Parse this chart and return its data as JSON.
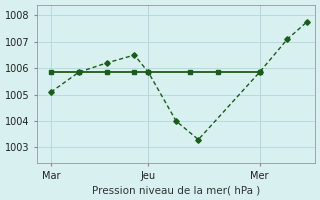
{
  "bg_color": "#d8f0f0",
  "grid_color": "#b8dada",
  "line_color": "#1a5c1a",
  "title": "Pression niveau de la mer( hPa )",
  "xlim": [
    0,
    10
  ],
  "ylim": [
    1002.4,
    1008.4
  ],
  "yticks": [
    1003,
    1004,
    1005,
    1006,
    1007,
    1008
  ],
  "xtick_positions": [
    0.5,
    4.0,
    8.0
  ],
  "xtick_labels": [
    "Mar",
    "Jeu",
    "Mer"
  ],
  "vline_x": 4.0,
  "vline2_x": 8.0,
  "line1_x": [
    0.5,
    1.5,
    2.5,
    3.5,
    4.0,
    5.5,
    6.5,
    8.0
  ],
  "line1_y": [
    1005.85,
    1005.85,
    1005.85,
    1005.85,
    1005.85,
    1005.85,
    1005.85,
    1005.85
  ],
  "line2_x": [
    0.5,
    1.5,
    2.5,
    3.5,
    4.0,
    5.0,
    5.8,
    8.0,
    9.0,
    9.7
  ],
  "line2_y": [
    1005.1,
    1005.85,
    1006.2,
    1006.5,
    1005.85,
    1004.0,
    1003.3,
    1005.85,
    1007.1,
    1007.75
  ]
}
